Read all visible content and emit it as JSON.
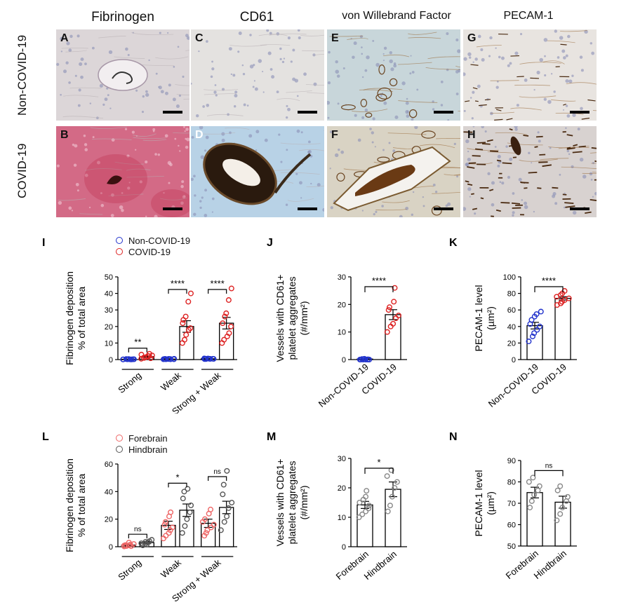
{
  "columns": [
    "Fibrinogen",
    "CD61",
    "von Willebrand Factor",
    "PECAM-1"
  ],
  "rows": [
    "Non-COVID-19",
    "COVID-19"
  ],
  "tiles": [
    {
      "letter": "A",
      "stain": "fibrinogen",
      "covid": false
    },
    {
      "letter": "C",
      "stain": "cd61",
      "covid": false
    },
    {
      "letter": "E",
      "stain": "vwf",
      "covid": false
    },
    {
      "letter": "G",
      "stain": "pecam",
      "covid": false
    },
    {
      "letter": "B",
      "stain": "fibrinogen",
      "covid": true
    },
    {
      "letter": "D",
      "stain": "cd61",
      "covid": true
    },
    {
      "letter": "F",
      "stain": "vwf",
      "covid": true
    },
    {
      "letter": "H",
      "stain": "pecam",
      "covid": true
    }
  ],
  "legend_top": {
    "items": [
      {
        "label": "Non-COVID-19",
        "color": "#2233cc"
      },
      {
        "label": "COVID-19",
        "color": "#dd2222"
      }
    ]
  },
  "legend_bottom": {
    "items": [
      {
        "label": "Forebrain",
        "color": "#ee6666"
      },
      {
        "label": "Hindbrain",
        "color": "#555555"
      }
    ]
  },
  "chart_data": [
    {
      "panel": "I",
      "type": "bar",
      "ylabel": [
        "Fibrinogen deposition",
        "% of total area"
      ],
      "ylim": [
        0,
        50
      ],
      "yticks": [
        0,
        10,
        20,
        30,
        40,
        50
      ],
      "categories": [
        "Strong",
        "Weak",
        "Strong + Weak"
      ],
      "series": [
        {
          "name": "Non-COVID-19",
          "color": "#2233cc",
          "values": [
            0.2,
            0.3,
            0.5
          ],
          "sem": [
            0.1,
            0.2,
            0.2
          ],
          "points": [
            [
              0.1,
              0.2,
              0.3,
              0.1,
              0.2,
              0.1,
              0.3,
              0.2,
              0.1,
              0.2
            ],
            [
              0.2,
              0.4,
              0.3,
              0.2,
              0.5,
              0.3,
              0.2,
              0.4,
              0.3,
              0.2
            ],
            [
              0.3,
              0.5,
              0.6,
              0.4,
              0.5,
              0.7,
              0.3,
              0.6,
              0.5,
              0.4
            ]
          ]
        },
        {
          "name": "COVID-19",
          "color": "#dd2222",
          "values": [
            1.8,
            20,
            22
          ],
          "sem": [
            0.5,
            3.5,
            3.5
          ],
          "points": [
            [
              0.5,
              1,
              1.5,
              2,
              2.5,
              3,
              1.2,
              2.2,
              3.5,
              0.8
            ],
            [
              10,
              12,
              15,
              18,
              19,
              22,
              24,
              26,
              35,
              40
            ],
            [
              10,
              12,
              14,
              16,
              20,
              22,
              26,
              28,
              36,
              43
            ]
          ]
        }
      ],
      "significance": [
        {
          "label": "**"
        },
        {
          "label": "****"
        },
        {
          "label": "****"
        }
      ]
    },
    {
      "panel": "J",
      "type": "bar",
      "ylabel": [
        "Vessels with CD61+",
        "platelet aggregates",
        "(#/mm²)"
      ],
      "ylim": [
        0,
        30
      ],
      "yticks": [
        0,
        10,
        20,
        30
      ],
      "categories": [
        "Non-COVID-19",
        "COVID-19"
      ],
      "colors": [
        "#2233cc",
        "#dd2222"
      ],
      "values": [
        0.2,
        16.3
      ],
      "sem": [
        0.1,
        1.8
      ],
      "points": [
        [
          0,
          0,
          0,
          0,
          0,
          0,
          0.2,
          0.3,
          0.1
        ],
        [
          10,
          12,
          13,
          15,
          16,
          18,
          19,
          21,
          26
        ]
      ],
      "significance": [
        {
          "label": "****"
        }
      ]
    },
    {
      "panel": "K",
      "type": "bar",
      "ylabel": [
        "PECAM-1 level",
        "(µm²)"
      ],
      "ylim": [
        0,
        100
      ],
      "yticks": [
        0,
        20,
        40,
        60,
        80,
        100
      ],
      "categories": [
        "Non-COVID-19",
        "COVID-19"
      ],
      "colors": [
        "#2233cc",
        "#dd2222"
      ],
      "values": [
        41,
        74
      ],
      "sem": [
        4,
        2
      ],
      "points": [
        [
          22,
          28,
          32,
          36,
          40,
          43,
          48,
          52,
          55,
          58
        ],
        [
          66,
          68,
          70,
          72,
          74,
          76,
          78,
          80,
          83
        ]
      ],
      "significance": [
        {
          "label": "****"
        }
      ]
    },
    {
      "panel": "L",
      "type": "bar",
      "ylabel": [
        "Fibrinogen deposition",
        "% of total area"
      ],
      "ylim": [
        0,
        60
      ],
      "yticks": [
        0,
        20,
        40,
        60
      ],
      "categories": [
        "Strong",
        "Weak",
        "Strong + Weak"
      ],
      "series": [
        {
          "name": "Forebrain",
          "color": "#ee6666",
          "values": [
            1.2,
            15.5,
            17
          ],
          "sem": [
            0.5,
            3,
            3
          ],
          "points": [
            [
              0.2,
              0.5,
              1,
              1.5,
              2,
              0.8,
              1.2,
              3,
              0.4
            ],
            [
              6,
              8,
              10,
              12,
              14,
              16,
              18,
              22,
              25
            ],
            [
              8,
              10,
              12,
              14,
              16,
              18,
              20,
              24,
              27
            ]
          ]
        },
        {
          "name": "Hindbrain",
          "color": "#555555",
          "values": [
            3,
            26.5,
            28.5
          ],
          "sem": [
            0.8,
            4.5,
            4.5
          ],
          "points": [
            [
              1,
              2,
              3,
              4,
              5,
              2.5,
              3.5,
              1.5
            ],
            [
              10,
              15,
              20,
              25,
              30,
              35,
              40,
              42
            ],
            [
              12,
              18,
              22,
              28,
              32,
              38,
              45,
              55
            ]
          ]
        }
      ],
      "significance": [
        {
          "label": "ns"
        },
        {
          "label": "*"
        },
        {
          "label": "ns"
        }
      ]
    },
    {
      "panel": "M",
      "type": "bar",
      "ylabel": [
        "Vessels with CD61+",
        "platelet aggregates",
        "(#/mm²)"
      ],
      "ylim": [
        0,
        30
      ],
      "yticks": [
        0,
        10,
        20,
        30
      ],
      "categories": [
        "Forebrain",
        "Hindbrain"
      ],
      "colors": [
        "#888888",
        "#888888"
      ],
      "values": [
        14.2,
        19.5
      ],
      "sem": [
        1.2,
        2.5
      ],
      "points": [
        [
          10,
          11,
          12,
          13,
          14,
          15,
          16,
          17,
          19
        ],
        [
          12,
          14,
          17,
          20,
          22,
          24,
          26
        ]
      ],
      "significance": [
        {
          "label": "*"
        }
      ]
    },
    {
      "panel": "N",
      "type": "bar",
      "ylabel": [
        "PECAM-1 level",
        "(µm²)"
      ],
      "ylim": [
        50,
        90
      ],
      "yticks": [
        50,
        60,
        70,
        80,
        90
      ],
      "categories": [
        "Forebrain",
        "Hindbrain"
      ],
      "colors": [
        "#888888",
        "#888888"
      ],
      "values": [
        75,
        70.5
      ],
      "sem": [
        2.5,
        2.8
      ],
      "points": [
        [
          68,
          71,
          74,
          76,
          78,
          80,
          82
        ],
        [
          62,
          65,
          68,
          71,
          73,
          76,
          78
        ]
      ],
      "significance": [
        {
          "label": "ns"
        }
      ]
    }
  ]
}
